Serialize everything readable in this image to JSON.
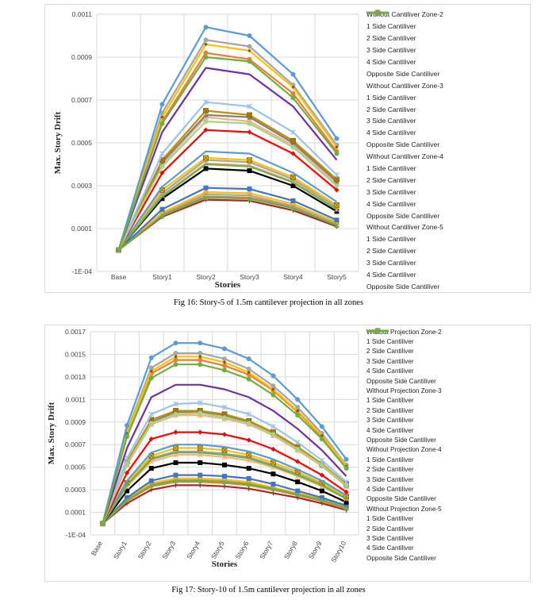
{
  "charts": [
    {
      "caption": "Fig 16: Story-5 of 1.5m cantilever projection in all zones",
      "chart_data": {
        "type": "line",
        "xlabel": "Stories",
        "ylabel": "Max. Story Drift",
        "categories": [
          "Base",
          "Story1",
          "Story2",
          "Story3",
          "Story4",
          "Story5"
        ],
        "y_ticks": [
          "0.0011",
          "0.0009",
          "0.0007",
          "0.0005",
          "0.0003",
          "0.0001",
          "-1E-04"
        ],
        "ylim": [
          -0.0001,
          0.0011
        ],
        "grid": true,
        "legend": "right",
        "series": [
          {
            "name": "Without Cantiliver Zone-2",
            "color": "#a5282a",
            "marker": "plus",
            "values": [
              0,
              0.000155,
              0.000235,
              0.00023,
              0.000185,
              0.00011
            ]
          },
          {
            "name": "1 Side Cantiliver",
            "color": "#ed7d31",
            "marker": "dash",
            "values": [
              0,
              0.000165,
              0.00025,
              0.000245,
              0.0002,
              0.00012
            ]
          },
          {
            "name": "2 Side Cantiliver",
            "color": "#a5a5a5",
            "marker": "dash",
            "values": [
              0,
              0.00017,
              0.00026,
              0.000255,
              0.000205,
              0.000125
            ]
          },
          {
            "name": "3 Side Cantiliver",
            "color": "#ffc000",
            "marker": "diamond",
            "values": [
              0,
              0.000175,
              0.00027,
              0.000265,
              0.000215,
              0.00013
            ]
          },
          {
            "name": "4 Side Cantiliver",
            "color": "#4472c4",
            "marker": "square",
            "values": [
              0,
              0.00019,
              0.00029,
              0.000285,
              0.00023,
              0.00014
            ]
          },
          {
            "name": "Opposite Side Cantiliver",
            "color": "#70ad47",
            "marker": "triangle",
            "values": [
              0,
              0.00016,
              0.000245,
              0.00024,
              0.000195,
              0.000115
            ]
          },
          {
            "name": "Without Cantiliver Zone-3",
            "color": "#000000",
            "marker": "square",
            "values": [
              0,
              0.00024,
              0.00038,
              0.00037,
              0.0003,
              0.00018
            ]
          },
          {
            "name": "1 Side Cantiliver",
            "color": "#f4b183",
            "marker": "star",
            "values": [
              0,
              0.000255,
              0.000405,
              0.000395,
              0.00032,
              0.00019
            ]
          },
          {
            "name": "2 Side Cantiliver",
            "color": "#a5a5a5",
            "marker": "circle",
            "values": [
              0,
              0.000265,
              0.00042,
              0.00041,
              0.00033,
              0.0002
            ]
          },
          {
            "name": "3 Side Cantiliver",
            "color": "#ffc000",
            "marker": "boxx",
            "values": [
              0,
              0.00028,
              0.00043,
              0.00042,
              0.00034,
              0.00021
            ]
          },
          {
            "name": "4 Side Cantiliver",
            "color": "#5b9bd5",
            "marker": "none",
            "values": [
              0,
              0.000295,
              0.00046,
              0.00045,
              0.00036,
              0.000225
            ]
          },
          {
            "name": "Opposite Side Cantiliver",
            "color": "#70ad47",
            "marker": "none",
            "values": [
              0,
              0.00025,
              0.0004,
              0.00039,
              0.000315,
              0.00019
            ]
          },
          {
            "name": "Without Cantiliver Zone-4",
            "color": "#ff0000",
            "marker": "diamond",
            "values": [
              0,
              0.00036,
              0.00056,
              0.00055,
              0.00045,
              0.00028
            ]
          },
          {
            "name": "1 Side Cantiliver",
            "color": "#f4b183",
            "marker": "square",
            "values": [
              0,
              0.0004,
              0.00062,
              0.0006,
              0.00049,
              0.00031
            ]
          },
          {
            "name": "2 Side Cantiliver",
            "color": "#7f7f7f",
            "marker": "triangle",
            "values": [
              0,
              0.00041,
              0.00063,
              0.00062,
              0.0005,
              0.00032
            ]
          },
          {
            "name": "3 Side Cantiliver",
            "color": "#bf9000",
            "marker": "boxx",
            "values": [
              0,
              0.00042,
              0.00065,
              0.00063,
              0.00051,
              0.00033
            ]
          },
          {
            "name": "4 Side Cantiliver",
            "color": "#9dc3e6",
            "marker": "star",
            "values": [
              0,
              0.00045,
              0.00069,
              0.00067,
              0.00055,
              0.00035
            ]
          },
          {
            "name": "Opposite Side Cantiliver",
            "color": "#a9d18e",
            "marker": "circle",
            "values": [
              0,
              0.00039,
              0.0006,
              0.00059,
              0.00048,
              0.0003
            ]
          },
          {
            "name": "Without Cantiliver Zone-5",
            "color": "#7030a0",
            "marker": "none",
            "values": [
              0,
              0.00055,
              0.00085,
              0.00082,
              0.00067,
              0.00042
            ]
          },
          {
            "name": "1 Side Cantiliver",
            "color": "#ed7d31",
            "marker": "circle",
            "values": [
              0,
              0.0006,
              0.00092,
              0.00089,
              0.00073,
              0.00046
            ]
          },
          {
            "name": "2 Side Cantiliver",
            "color": "#a5a5a5",
            "marker": "circle",
            "values": [
              0,
              0.00064,
              0.00098,
              0.00095,
              0.00077,
              0.00049
            ]
          },
          {
            "name": "3 Side Cantiliver",
            "color": "#ffc000",
            "marker": "dot",
            "values": [
              0,
              0.00062,
              0.00096,
              0.00093,
              0.00076,
              0.00048
            ]
          },
          {
            "name": "4 Side Cantiliver",
            "color": "#5b9bd5",
            "marker": "circle",
            "values": [
              0,
              0.00068,
              0.00104,
              0.001,
              0.00082,
              0.00052
            ]
          },
          {
            "name": "Opposite Side Cantiliver",
            "color": "#70ad47",
            "marker": "circle",
            "values": [
              0,
              0.00059,
              0.0009,
              0.00088,
              0.00071,
              0.00045
            ]
          }
        ]
      }
    },
    {
      "caption": "Fig 17: Story-10 of 1.5m cantilever projection in all zones",
      "chart_data": {
        "type": "line",
        "xlabel": "Stories",
        "ylabel": "Max. Story Drift",
        "categories": [
          "Base",
          "Story1",
          "Story2",
          "Story3",
          "Story4",
          "Story5",
          "Story6",
          "Story7",
          "Story8",
          "Story9",
          "Story10"
        ],
        "y_ticks": [
          "0.0017",
          "0.0015",
          "0.0013",
          "0.0011",
          "0.0009",
          "0.0007",
          "0.0005",
          "0.0003",
          "0.0001",
          "-1E-04"
        ],
        "ylim": [
          -0.0001,
          0.0017
        ],
        "grid": true,
        "legend": "right",
        "series": [
          {
            "name": "Without Projection Zone-2",
            "color": "#a5282a",
            "marker": "plus",
            "values": [
              0,
              0.00018,
              0.0003,
              0.00034,
              0.00034,
              0.00033,
              0.00031,
              0.00027,
              0.00023,
              0.00018,
              0.00012
            ]
          },
          {
            "name": "1 Side Cantiliver",
            "color": "#ed7d31",
            "marker": "dash",
            "values": [
              0,
              0.0002,
              0.00033,
              0.00037,
              0.00037,
              0.00036,
              0.00034,
              0.0003,
              0.00025,
              0.0002,
              0.00013
            ]
          },
          {
            "name": "2 Side Cantiliver",
            "color": "#a5a5a5",
            "marker": "dash",
            "values": [
              0,
              0.00021,
              0.00035,
              0.00039,
              0.00039,
              0.00038,
              0.00036,
              0.00031,
              0.00026,
              0.00021,
              0.00014
            ]
          },
          {
            "name": "3 Side Cantiliver",
            "color": "#ffc000",
            "marker": "diamond",
            "values": [
              0,
              0.00022,
              0.00036,
              0.0004,
              0.0004,
              0.00039,
              0.00037,
              0.00032,
              0.00027,
              0.00022,
              0.00015
            ]
          },
          {
            "name": "4 Side Cantiliver",
            "color": "#4472c4",
            "marker": "square",
            "values": [
              0,
              0.00023,
              0.00038,
              0.00043,
              0.00043,
              0.00042,
              0.0004,
              0.00035,
              0.00029,
              0.00023,
              0.00016
            ]
          },
          {
            "name": "Opposite Side Cantiliver",
            "color": "#70ad47",
            "marker": "triangle",
            "values": [
              0,
              0.00021,
              0.00034,
              0.00038,
              0.00038,
              0.00037,
              0.00035,
              0.00031,
              0.00026,
              0.00021,
              0.00014
            ]
          },
          {
            "name": "Without Projection Zone-3",
            "color": "#000000",
            "marker": "square",
            "values": [
              0,
              0.00029,
              0.00049,
              0.00054,
              0.00054,
              0.00052,
              0.00049,
              0.00044,
              0.00037,
              0.00029,
              0.00019
            ]
          },
          {
            "name": "1 Side Cantiliver",
            "color": "#f4b183",
            "marker": "star",
            "values": [
              0,
              0.00033,
              0.00055,
              0.00061,
              0.00061,
              0.00059,
              0.00056,
              0.0005,
              0.00042,
              0.00033,
              0.00022
            ]
          },
          {
            "name": "2 Side Cantiliver",
            "color": "#a5a5a5",
            "marker": "circle",
            "values": [
              0,
              0.00035,
              0.00058,
              0.00064,
              0.00064,
              0.00062,
              0.00059,
              0.00052,
              0.00044,
              0.00035,
              0.00023
            ]
          },
          {
            "name": "3 Side Cantiliver",
            "color": "#ffc000",
            "marker": "boxx",
            "values": [
              0,
              0.00036,
              0.0006,
              0.00067,
              0.00067,
              0.00065,
              0.00061,
              0.00054,
              0.00046,
              0.00036,
              0.00024
            ]
          },
          {
            "name": "4 Side Cantiliver",
            "color": "#5b9bd5",
            "marker": "none",
            "values": [
              0,
              0.00038,
              0.00063,
              0.0007,
              0.0007,
              0.00068,
              0.00064,
              0.00057,
              0.00048,
              0.00038,
              0.00025
            ]
          },
          {
            "name": "Opposite Side Cantiliver",
            "color": "#70ad47",
            "marker": "none",
            "values": [
              0,
              0.00034,
              0.00057,
              0.00063,
              0.00063,
              0.00061,
              0.00058,
              0.00051,
              0.00043,
              0.00034,
              0.00022
            ]
          },
          {
            "name": "Without Projection Zone-4",
            "color": "#ff0000",
            "marker": "diamond",
            "values": [
              0,
              0.00045,
              0.00075,
              0.00081,
              0.00081,
              0.00079,
              0.00074,
              0.00066,
              0.00055,
              0.00043,
              0.00028
            ]
          },
          {
            "name": "1 Side Cantiliver",
            "color": "#f4b183",
            "marker": "square",
            "values": [
              0,
              0.00052,
              0.00088,
              0.00096,
              0.00096,
              0.00093,
              0.00088,
              0.00078,
              0.00065,
              0.00051,
              0.00033
            ]
          },
          {
            "name": "2 Side Cantiliver",
            "color": "#7f7f7f",
            "marker": "triangle",
            "values": [
              0,
              0.00054,
              0.0009,
              0.00099,
              0.00099,
              0.00096,
              0.0009,
              0.0008,
              0.00067,
              0.00052,
              0.00034
            ]
          },
          {
            "name": "3 Side Cantiliver",
            "color": "#bf9000",
            "marker": "boxx",
            "values": [
              0,
              0.00055,
              0.00092,
              0.001,
              0.001,
              0.00097,
              0.00091,
              0.00081,
              0.00068,
              0.00053,
              0.00035
            ]
          },
          {
            "name": "4 Side Cantiliver",
            "color": "#9dc3e6",
            "marker": "star",
            "values": [
              0,
              0.00058,
              0.00097,
              0.00106,
              0.00107,
              0.00103,
              0.00097,
              0.00086,
              0.00072,
              0.00056,
              0.00037
            ]
          },
          {
            "name": "Opposite Side Cantiliver",
            "color": "#a9d18e",
            "marker": "circle",
            "values": [
              0,
              0.00053,
              0.00089,
              0.00097,
              0.00098,
              0.00094,
              0.00089,
              0.00079,
              0.00066,
              0.00052,
              0.00034
            ]
          },
          {
            "name": "Without Projection Zone-5",
            "color": "#7030a0",
            "marker": "none",
            "values": [
              0,
              0.00067,
              0.00112,
              0.00123,
              0.00123,
              0.00119,
              0.00112,
              0.001,
              0.00084,
              0.00065,
              0.00042
            ]
          },
          {
            "name": "1 Side Cantiliver",
            "color": "#ed7d31",
            "marker": "circle",
            "values": [
              0,
              0.00079,
              0.00133,
              0.00145,
              0.00145,
              0.0014,
              0.00132,
              0.00118,
              0.00099,
              0.00077,
              0.0005
            ]
          },
          {
            "name": "2 Side Cantiliver",
            "color": "#a5a5a5",
            "marker": "circle",
            "values": [
              0,
              0.00082,
              0.00138,
              0.00151,
              0.00151,
              0.00146,
              0.00137,
              0.00122,
              0.00103,
              0.0008,
              0.00052
            ]
          },
          {
            "name": "3 Side Cantiliver",
            "color": "#ffc000",
            "marker": "dot",
            "values": [
              0,
              0.0008,
              0.00135,
              0.00148,
              0.00148,
              0.00143,
              0.00134,
              0.00119,
              0.001,
              0.00078,
              0.00051
            ]
          },
          {
            "name": "4 Side Cantiliver",
            "color": "#5b9bd5",
            "marker": "circle",
            "values": [
              0,
              0.00087,
              0.00147,
              0.0016,
              0.0016,
              0.00155,
              0.00146,
              0.00131,
              0.0011,
              0.00086,
              0.00057
            ]
          },
          {
            "name": "Opposite Side Cantiliver",
            "color": "#70ad47",
            "marker": "circle",
            "values": [
              0,
              0.00077,
              0.00129,
              0.00141,
              0.00141,
              0.00136,
              0.00128,
              0.00114,
              0.00096,
              0.00075,
              0.00049
            ]
          }
        ]
      }
    }
  ]
}
